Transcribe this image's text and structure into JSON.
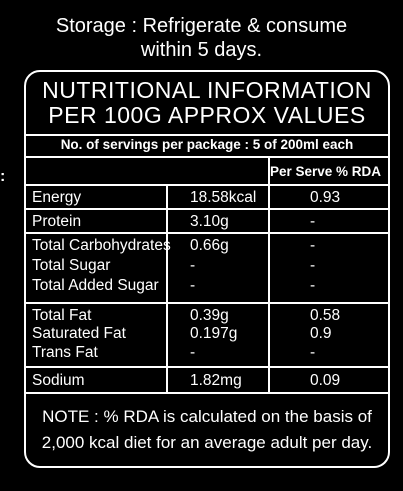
{
  "storage": {
    "line1": "Storage : Refrigerate & consume",
    "line2": "within 5 days."
  },
  "panel": {
    "title_line1": "NUTRITIONAL INFORMATION",
    "title_line2": "PER 100G APPROX VALUES",
    "servings": "No. of servings per package : 5 of 200ml each",
    "column_header": "Per Serve % RDA",
    "rows": [
      {
        "name": "Energy",
        "value": "18.58kcal",
        "rda": "0.93"
      },
      {
        "name": "Protein",
        "value": "3.10g",
        "rda": "-"
      },
      {
        "name": "Total Carbohydrates",
        "value": "0.66g",
        "rda": "-"
      },
      {
        "name": "Total Sugar",
        "value": "-",
        "rda": "-"
      },
      {
        "name": "Total Added Sugar",
        "value": "-",
        "rda": "-"
      },
      {
        "name": "Total Fat",
        "value": "0.39g",
        "rda": "0.58"
      },
      {
        "name": "Saturated Fat",
        "value": "0.197g",
        "rda": "0.9"
      },
      {
        "name": "Trans Fat",
        "value": "-",
        "rda": "-"
      },
      {
        "name": "Sodium",
        "value": "1.82mg",
        "rda": "0.09"
      }
    ],
    "note_line1": "NOTE : % RDA is calculated on the basis of",
    "note_line2": "2,000 kcal diet for an average adult per day."
  },
  "side_marker": ":"
}
